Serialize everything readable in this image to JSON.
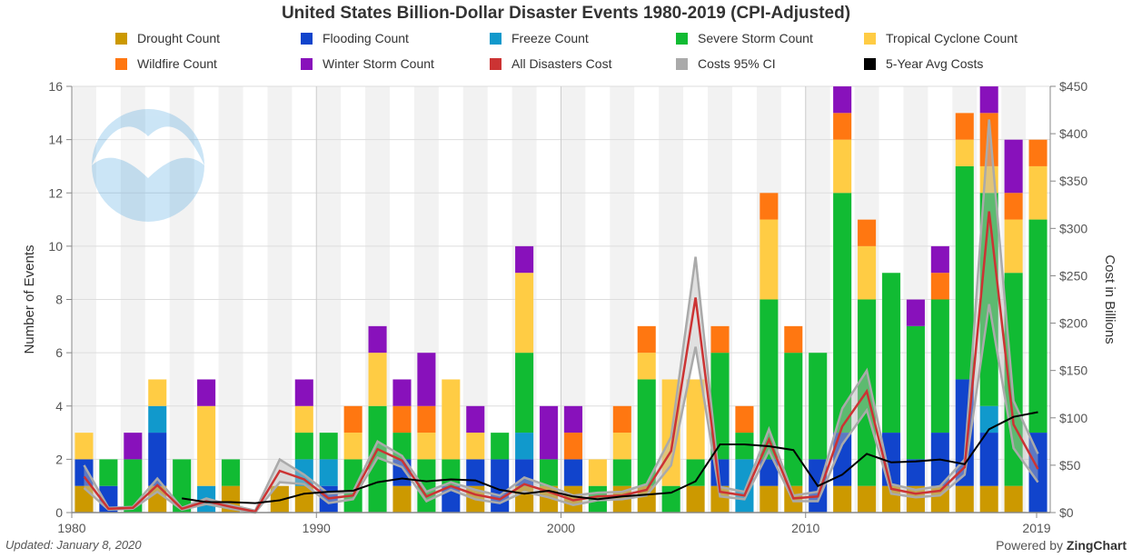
{
  "title": "United States Billion-Dollar Disaster Events 1980-2019 (CPI-Adjusted)",
  "footer": {
    "updated": "Updated: January 8, 2020",
    "powered_prefix": "Powered by",
    "powered_brand": "ZingChart"
  },
  "logo": {
    "text": "NOAA"
  },
  "colors": {
    "drought": "#cc9900",
    "flooding": "#1144cc",
    "freeze": "#1199cc",
    "severe_storm": "#11bb33",
    "tropical_cyclone": "#ffcc44",
    "wildfire": "#ff7711",
    "winter_storm": "#8811bb",
    "cost": "#cc3333",
    "ci": "#aaaaaa",
    "avg": "#000000"
  },
  "chart_data": {
    "type": "bar",
    "stacked": true,
    "x": [
      1980,
      1981,
      1982,
      1983,
      1984,
      1985,
      1986,
      1987,
      1988,
      1989,
      1990,
      1991,
      1992,
      1993,
      1994,
      1995,
      1996,
      1997,
      1998,
      1999,
      2000,
      2001,
      2002,
      2003,
      2004,
      2005,
      2006,
      2007,
      2008,
      2009,
      2010,
      2011,
      2012,
      2013,
      2014,
      2015,
      2016,
      2017,
      2018,
      2019
    ],
    "x_ticks": [
      "1980",
      "1990",
      "2000",
      "2010",
      "2019"
    ],
    "ylabel": "Number of Events",
    "y2label": "Cost in Billions",
    "ylim": [
      0,
      16
    ],
    "y_ticks": [
      "0",
      "2",
      "4",
      "6",
      "8",
      "10",
      "12",
      "14",
      "16"
    ],
    "y2lim": [
      0,
      450
    ],
    "y2_ticks": [
      "$0",
      "$50",
      "$100",
      "$150",
      "$200",
      "$250",
      "$300",
      "$350",
      "$400",
      "$450"
    ],
    "legend_placement": "top",
    "series": [
      {
        "name": "Drought Count",
        "key": "drought",
        "values": [
          1,
          0,
          0,
          1,
          0,
          0,
          1,
          0,
          1,
          1,
          0,
          0,
          0,
          1,
          0,
          0,
          1,
          0,
          1,
          1,
          1,
          0,
          1,
          1,
          0,
          1,
          1,
          0,
          1,
          1,
          0,
          1,
          1,
          1,
          1,
          1,
          1,
          1,
          1,
          0
        ]
      },
      {
        "name": "Flooding Count",
        "key": "flooding",
        "values": [
          1,
          1,
          0,
          2,
          0,
          0,
          0,
          0,
          0,
          0,
          1,
          0,
          0,
          1,
          0,
          1,
          1,
          2,
          1,
          0,
          1,
          0,
          0,
          0,
          0,
          0,
          1,
          0,
          1,
          0,
          2,
          2,
          0,
          2,
          1,
          2,
          4,
          2,
          0,
          3
        ]
      },
      {
        "name": "Freeze Count",
        "key": "freeze",
        "values": [
          0,
          0,
          0,
          1,
          0,
          1,
          0,
          0,
          0,
          1,
          1,
          0,
          0,
          0,
          0,
          0,
          0,
          0,
          1,
          0,
          0,
          0,
          0,
          0,
          0,
          0,
          0,
          2,
          0,
          0,
          0,
          0,
          0,
          0,
          0,
          0,
          0,
          1,
          0,
          0
        ]
      },
      {
        "name": "Severe Storm Count",
        "key": "severe_storm",
        "values": [
          0,
          1,
          2,
          0,
          2,
          0,
          1,
          0,
          0,
          1,
          1,
          2,
          4,
          1,
          2,
          1,
          0,
          1,
          3,
          1,
          0,
          1,
          1,
          4,
          1,
          1,
          4,
          1,
          6,
          5,
          4,
          9,
          7,
          6,
          5,
          5,
          8,
          8,
          8,
          8
        ]
      },
      {
        "name": "Tropical Cyclone Count",
        "key": "tropical_cyclone",
        "values": [
          1,
          0,
          0,
          1,
          0,
          3,
          0,
          0,
          0,
          1,
          0,
          1,
          2,
          0,
          1,
          3,
          1,
          0,
          3,
          0,
          0,
          1,
          1,
          1,
          4,
          3,
          0,
          0,
          3,
          0,
          0,
          2,
          2,
          0,
          0,
          0,
          1,
          1,
          2,
          2
        ]
      },
      {
        "name": "Wildfire Count",
        "key": "wildfire",
        "values": [
          0,
          0,
          0,
          0,
          0,
          0,
          0,
          0,
          0,
          0,
          0,
          1,
          0,
          1,
          1,
          0,
          0,
          0,
          0,
          0,
          1,
          0,
          1,
          1,
          0,
          0,
          1,
          1,
          1,
          1,
          0,
          1,
          1,
          0,
          0,
          1,
          1,
          2,
          1,
          1
        ]
      },
      {
        "name": "Winter Storm Count",
        "key": "winter_storm",
        "values": [
          0,
          0,
          1,
          0,
          0,
          1,
          0,
          0,
          0,
          1,
          0,
          0,
          1,
          1,
          2,
          0,
          1,
          0,
          1,
          2,
          1,
          0,
          0,
          0,
          0,
          0,
          0,
          0,
          0,
          0,
          0,
          1,
          0,
          0,
          1,
          1,
          0,
          1,
          2,
          0
        ]
      }
    ],
    "lines": [
      {
        "name": "All Disasters Cost",
        "key": "cost",
        "values": [
          38,
          4,
          5,
          29,
          4,
          12,
          6,
          1,
          44,
          35,
          15,
          18,
          67,
          55,
          17,
          28,
          19,
          14,
          30,
          22,
          13,
          17,
          18,
          24,
          65,
          227,
          22,
          18,
          77,
          15,
          17,
          91,
          128,
          25,
          20,
          23,
          48,
          318,
          93,
          46
        ]
      },
      {
        "name": "Costs 95% CI",
        "key": "ci",
        "values": [
          50,
          5,
          6,
          36,
          5,
          15,
          8,
          2,
          56,
          40,
          20,
          22,
          75,
          60,
          22,
          32,
          24,
          18,
          37,
          28,
          18,
          21,
          22,
          30,
          80,
          270,
          27,
          22,
          88,
          18,
          22,
          110,
          150,
          30,
          24,
          28,
          56,
          415,
          118,
          62
        ]
      },
      {
        "name": "Costs 95% CI (lower)",
        "key": "ci_low",
        "legend": false,
        "values": [
          26,
          3,
          4,
          22,
          3,
          9,
          4,
          0,
          32,
          30,
          10,
          14,
          58,
          48,
          12,
          24,
          14,
          10,
          22,
          16,
          8,
          13,
          14,
          18,
          50,
          175,
          17,
          14,
          65,
          12,
          12,
          72,
          108,
          20,
          16,
          18,
          40,
          220,
          68,
          32
        ]
      },
      {
        "name": "5-Year Avg Costs",
        "key": "avg",
        "values": [
          null,
          null,
          null,
          null,
          15,
          11,
          11,
          10,
          13,
          20,
          22,
          23,
          32,
          36,
          33,
          35,
          34,
          24,
          20,
          23,
          17,
          14,
          17,
          19,
          21,
          33,
          72,
          72,
          70,
          66,
          28,
          40,
          62,
          53,
          54,
          56,
          51,
          88,
          101,
          106
        ]
      }
    ]
  }
}
